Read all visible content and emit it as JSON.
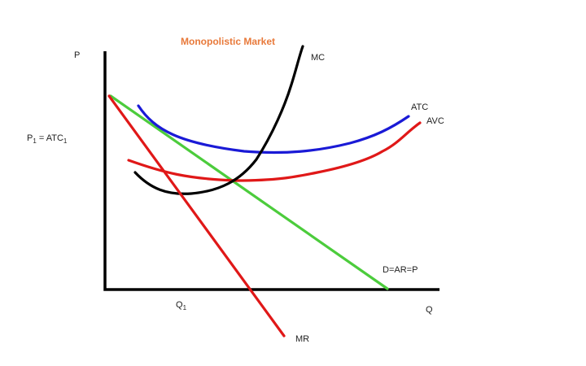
{
  "diagram": {
    "title": "Monopolistic Market",
    "title_color": "#e8793a",
    "y_axis_label": "P",
    "x_axis_label": "Q",
    "price_marker": {
      "base": "P",
      "sub": "1",
      "mid": " = ATC",
      "sub2": "1"
    },
    "quantity_marker": {
      "base": "Q",
      "sub": "1"
    },
    "curves": {
      "mc": {
        "label": "MC",
        "color": "#000000"
      },
      "atc": {
        "label": "ATC",
        "color": "#1a1ad6"
      },
      "avc": {
        "label": "AVC",
        "color": "#e01818"
      },
      "demand": {
        "label": "D=AR=P",
        "color": "#4ccc3c"
      },
      "mr": {
        "label": "MR",
        "color": "#e01818"
      }
    }
  }
}
